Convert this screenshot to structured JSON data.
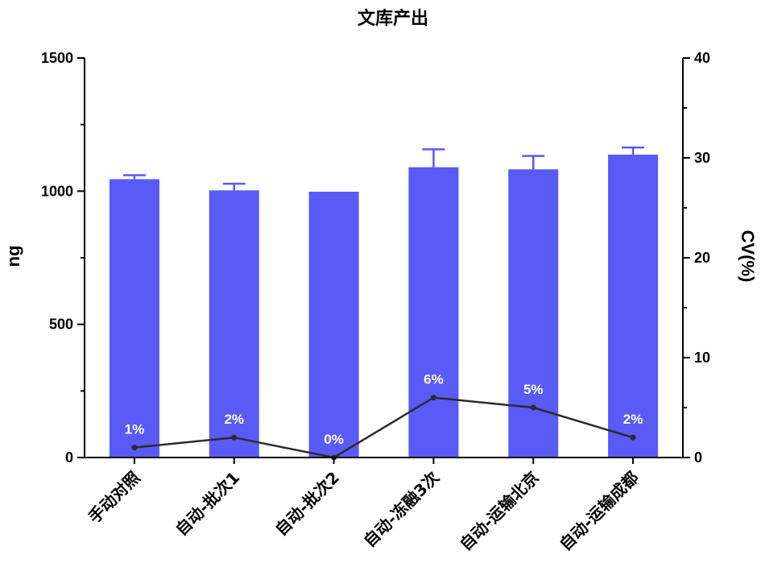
{
  "chart_data": {
    "type": "bar",
    "title": "文库产出",
    "ylabel": "ng",
    "y2label": "CV(%)",
    "ylim": [
      0,
      1500
    ],
    "y2lim": [
      0,
      40
    ],
    "yticks": [
      "0",
      "500",
      "1000",
      "1500"
    ],
    "y2ticks": [
      "0",
      "10",
      "20",
      "30",
      "40"
    ],
    "categories": [
      "手动对照",
      "自动-批次1",
      "自动-批次2",
      "自动-冻融3次",
      "自动-运输北京",
      "自动-运输成都"
    ],
    "series": [
      {
        "type": "bar",
        "axis": "left",
        "values": [
          1045,
          1003,
          998,
          1090,
          1082,
          1137
        ],
        "error": [
          15,
          25,
          0,
          67,
          50,
          27
        ]
      },
      {
        "type": "line",
        "axis": "right",
        "values": [
          1,
          2,
          0,
          6,
          5,
          2
        ],
        "labels": [
          "1%",
          "2%",
          "0%",
          "6%",
          "5%",
          "2%"
        ]
      }
    ],
    "grid": false,
    "colors": {
      "bar": "#5a5af7",
      "line": "#2b2b2b",
      "axis": "#000000",
      "label": "#ffffff"
    }
  }
}
